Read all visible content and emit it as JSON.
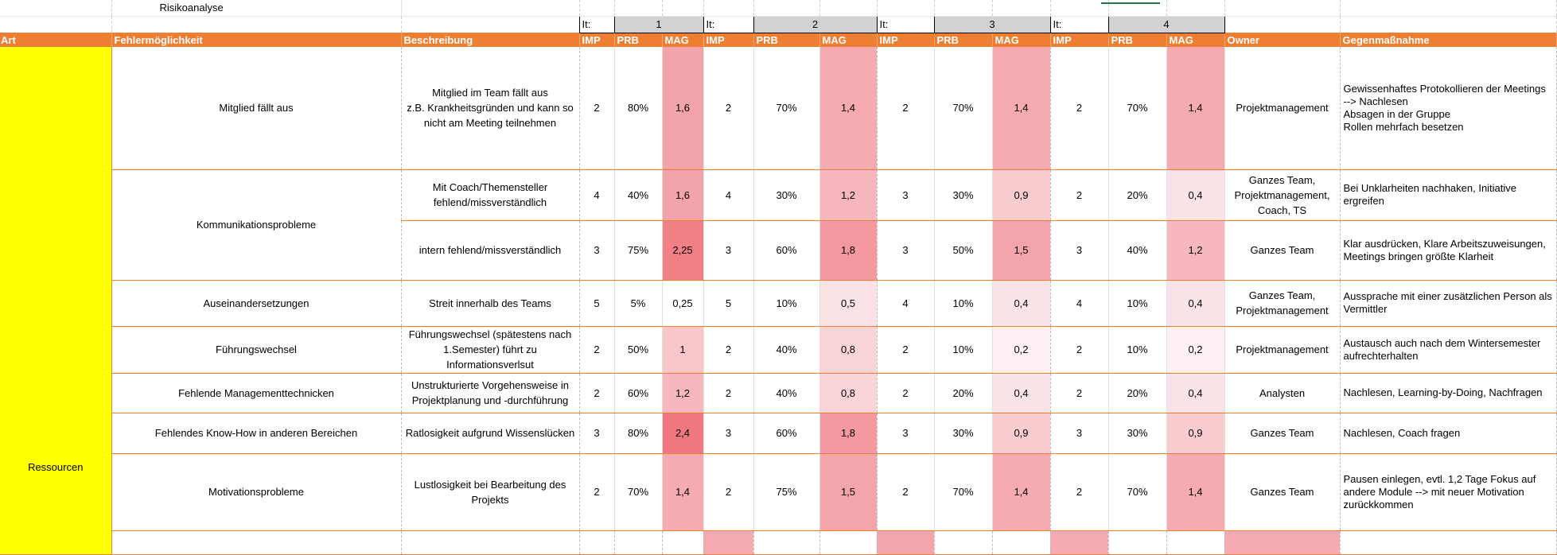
{
  "sheet": {
    "title": "Risikoanalyse",
    "iteration_label": "It:",
    "iterations": [
      "1",
      "2",
      "3",
      "4"
    ],
    "headers": {
      "art": "Art",
      "fehler": "Fehlermöglichkeit",
      "beschreibung": "Beschreibung",
      "imp": "IMP",
      "prb": "PRB",
      "mag": "MAG",
      "owner": "Owner",
      "gegen": "Gegenmaßnahme"
    },
    "art_value": "Ressourcen",
    "heat_colors": {
      "0.2": "#fdf0f2",
      "0.25": "#ffffff",
      "0.4": "#fbe4e7",
      "0.5": "#fbe2e5",
      "0.8": "#fad4d8",
      "0.9": "#f9cccf",
      "1": "#f8c6cb",
      "1.2": "#f6b8be",
      "1.4": "#f5abb1",
      "1.5": "#f4a5ab",
      "1.6": "#f3a3aa",
      "1.8": "#f3999f",
      "2.25": "#f07f86",
      "2.4": "#ef7880"
    },
    "rows": [
      {
        "fehler": "Mitglied fällt aus",
        "beschreibung": "Mitglied im Team fällt aus\nz.B. Krankheitsgründen und kann so\nnicht am Meeting teilnehmen",
        "it": [
          [
            "2",
            "80%",
            "1,6"
          ],
          [
            "2",
            "70%",
            "1,4"
          ],
          [
            "2",
            "70%",
            "1,4"
          ],
          [
            "2",
            "70%",
            "1,4"
          ]
        ],
        "owner": "Projektmanagement",
        "gegen": "Gewissenhaftes Protokollieren der Meetings\n--> Nachlesen\nAbsagen in der Gruppe\nRollen mehrfach besetzen"
      },
      {
        "fehler": "Kommunikationsprobleme",
        "beschreibung": "Mit Coach/Themensteller\nfehlend/missverständlich",
        "it": [
          [
            "4",
            "40%",
            "1,6"
          ],
          [
            "4",
            "30%",
            "1,2"
          ],
          [
            "3",
            "30%",
            "0,9"
          ],
          [
            "2",
            "20%",
            "0,4"
          ]
        ],
        "owner": "Ganzes Team,\nProjektmanagement,\nCoach, TS",
        "gegen": "Bei Unklarheiten nachhaken, Initiative ergreifen"
      },
      {
        "fehler": "",
        "beschreibung": "intern fehlend/missverständlich",
        "it": [
          [
            "3",
            "75%",
            "2,25"
          ],
          [
            "3",
            "60%",
            "1,8"
          ],
          [
            "3",
            "50%",
            "1,5"
          ],
          [
            "3",
            "40%",
            "1,2"
          ]
        ],
        "owner": "Ganzes Team",
        "gegen": "Klar ausdrücken, Klare Arbeitszuweisungen, Meetings bringen größte Klarheit"
      },
      {
        "fehler": "Auseinandersetzungen",
        "beschreibung": "Streit innerhalb des Teams",
        "it": [
          [
            "5",
            "5%",
            "0,25"
          ],
          [
            "5",
            "10%",
            "0,5"
          ],
          [
            "4",
            "10%",
            "0,4"
          ],
          [
            "4",
            "10%",
            "0,4"
          ]
        ],
        "owner": "Ganzes Team,\nProjektmanagement",
        "gegen": "Aussprache mit einer zusätzlichen Person als Vermittler"
      },
      {
        "fehler": "Führungswechsel",
        "beschreibung": "Führungswechsel (spätestens nach 1.Semester) führt zu Informationsverlsut",
        "it": [
          [
            "2",
            "50%",
            "1"
          ],
          [
            "2",
            "40%",
            "0,8"
          ],
          [
            "2",
            "10%",
            "0,2"
          ],
          [
            "2",
            "10%",
            "0,2"
          ]
        ],
        "owner": "Projektmanagement",
        "gegen": "Austausch auch nach dem Wintersemester aufrechterhalten"
      },
      {
        "fehler": "Fehlende Managementtechnicken",
        "beschreibung": "Unstrukturierte Vorgehensweise in Projektplanung und -durchführung",
        "it": [
          [
            "2",
            "60%",
            "1,2"
          ],
          [
            "2",
            "40%",
            "0,8"
          ],
          [
            "2",
            "20%",
            "0,4"
          ],
          [
            "2",
            "20%",
            "0,4"
          ]
        ],
        "owner": "Analysten",
        "gegen": "Nachlesen, Learning-by-Doing, Nachfragen"
      },
      {
        "fehler": "Fehlendes Know-How in anderen Bereichen",
        "beschreibung": "Ratlosigkeit aufgrund Wissenslücken",
        "it": [
          [
            "3",
            "80%",
            "2,4"
          ],
          [
            "3",
            "60%",
            "1,8"
          ],
          [
            "3",
            "30%",
            "0,9"
          ],
          [
            "3",
            "30%",
            "0,9"
          ]
        ],
        "owner": "Ganzes Team",
        "gegen": "Nachlesen, Coach fragen"
      },
      {
        "fehler": "Motivationsprobleme",
        "beschreibung": "Lustlosigkeit bei Bearbeitung des Projekts",
        "it": [
          [
            "2",
            "70%",
            "1,4"
          ],
          [
            "2",
            "75%",
            "1,5"
          ],
          [
            "2",
            "70%",
            "1,4"
          ],
          [
            "2",
            "70%",
            "1,4"
          ]
        ],
        "owner": "Ganzes Team",
        "gegen": "Pausen einlegen, evtl. 1,2 Tage Fokus auf andere Module --> mit neuer Motivation zurückkommen"
      }
    ]
  }
}
